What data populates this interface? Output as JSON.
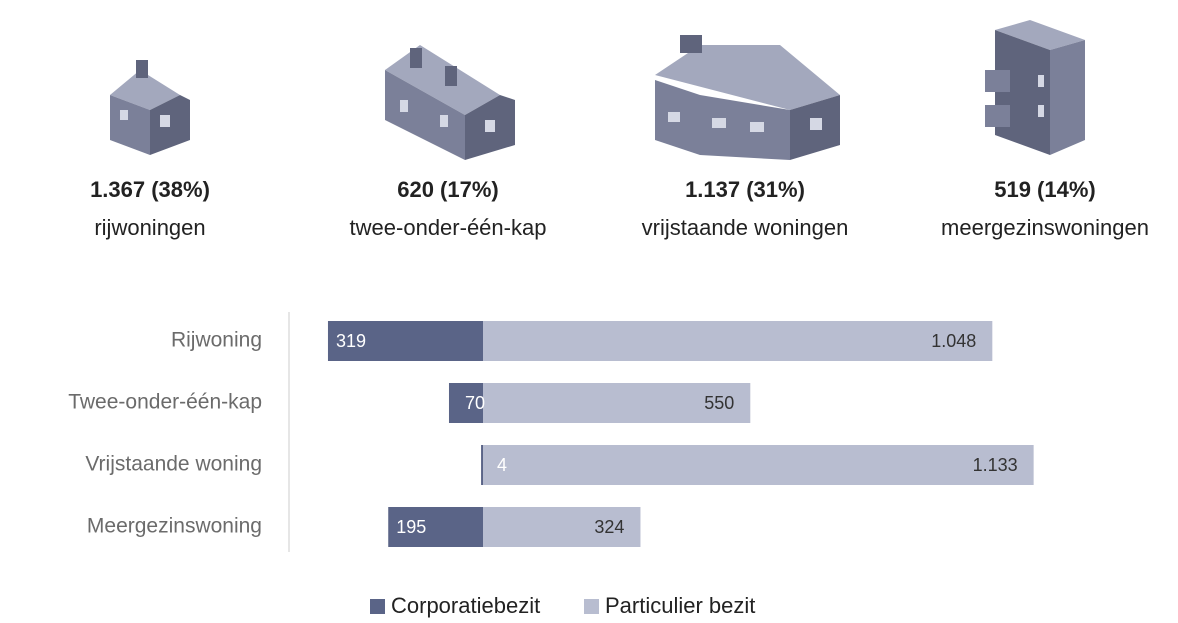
{
  "summary": [
    {
      "value_label": "1.367 (38%)",
      "label": "rijwoningen"
    },
    {
      "value_label": "620 (17%)",
      "label": "twee-onder-één-kap"
    },
    {
      "value_label": "1.137 (31%)",
      "label": "vrijstaande woningen"
    },
    {
      "value_label": "519 (14%)",
      "label": "meergezinswoningen"
    }
  ],
  "chart_data": {
    "type": "bar",
    "categories": [
      "Rijwoning",
      "Twee-onder-één-kap",
      "Vrijstaande woning",
      "Meergezinswoning"
    ],
    "series": [
      {
        "name": "Corporatiebezit",
        "color": "#5a6487",
        "values": [
          319,
          70,
          4,
          195
        ],
        "value_labels": [
          "319",
          "70",
          "4",
          "195"
        ]
      },
      {
        "name": "Particulier bezit",
        "color": "#b8bdd0",
        "values": [
          1048,
          550,
          1133,
          324
        ],
        "value_labels": [
          "1.048",
          "550",
          "1.133",
          "324"
        ]
      }
    ]
  }
}
